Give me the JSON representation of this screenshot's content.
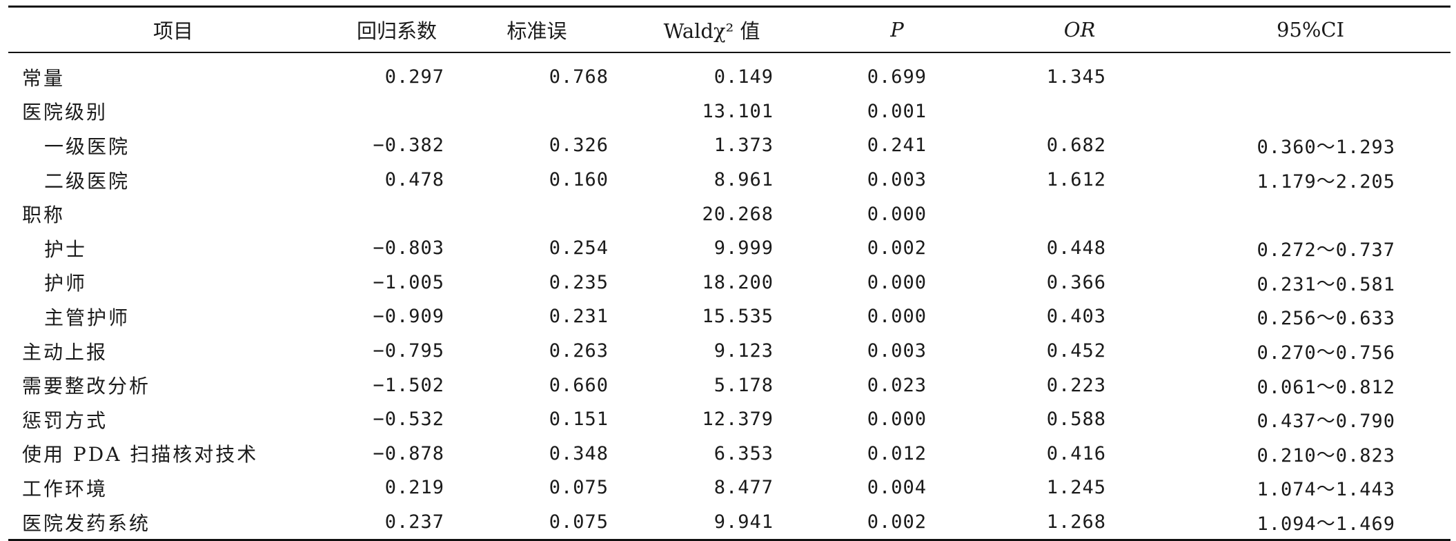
{
  "headers": [
    "项目",
    "回归系数",
    "标准误",
    "Waldχ² 值",
    "P",
    "OR",
    "95%CI"
  ],
  "rows": [
    {
      "item": "常量",
      "sub": false,
      "coef": "0.297",
      "se": "0.768",
      "wald": "0.149",
      "p": "0.699",
      "or": "1.345",
      "ci": ""
    },
    {
      "item": "医院级别",
      "sub": false,
      "coef": "",
      "se": "",
      "wald": "13.101",
      "p": "0.001",
      "or": "",
      "ci": ""
    },
    {
      "item": "一级医院",
      "sub": true,
      "coef": "−0.382",
      "se": "0.326",
      "wald": "1.373",
      "p": "0.241",
      "or": "0.682",
      "ci": "0.360～1.293"
    },
    {
      "item": "二级医院",
      "sub": true,
      "coef": "0.478",
      "se": "0.160",
      "wald": "8.961",
      "p": "0.003",
      "or": "1.612",
      "ci": "1.179～2.205"
    },
    {
      "item": "职称",
      "sub": false,
      "coef": "",
      "se": "",
      "wald": "20.268",
      "p": "0.000",
      "or": "",
      "ci": ""
    },
    {
      "item": "护士",
      "sub": true,
      "coef": "−0.803",
      "se": "0.254",
      "wald": "9.999",
      "p": "0.002",
      "or": "0.448",
      "ci": "0.272～0.737"
    },
    {
      "item": "护师",
      "sub": true,
      "coef": "−1.005",
      "se": "0.235",
      "wald": "18.200",
      "p": "0.000",
      "or": "0.366",
      "ci": "0.231～0.581"
    },
    {
      "item": "主管护师",
      "sub": true,
      "coef": "−0.909",
      "se": "0.231",
      "wald": "15.535",
      "p": "0.000",
      "or": "0.403",
      "ci": "0.256～0.633"
    },
    {
      "item": "主动上报",
      "sub": false,
      "coef": "−0.795",
      "se": "0.263",
      "wald": "9.123",
      "p": "0.003",
      "or": "0.452",
      "ci": "0.270～0.756"
    },
    {
      "item": "需要整改分析",
      "sub": false,
      "coef": "−1.502",
      "se": "0.660",
      "wald": "5.178",
      "p": "0.023",
      "or": "0.223",
      "ci": "0.061～0.812"
    },
    {
      "item": "惩罚方式",
      "sub": false,
      "coef": "−0.532",
      "se": "0.151",
      "wald": "12.379",
      "p": "0.000",
      "or": "0.588",
      "ci": "0.437～0.790"
    },
    {
      "item": "使用 PDA 扫描核对技术",
      "sub": false,
      "coef": "−0.878",
      "se": "0.348",
      "wald": "6.353",
      "p": "0.012",
      "or": "0.416",
      "ci": "0.210～0.823"
    },
    {
      "item": "工作环境",
      "sub": false,
      "coef": "0.219",
      "se": "0.075",
      "wald": "8.477",
      "p": "0.004",
      "or": "1.245",
      "ci": "1.074～1.443"
    },
    {
      "item": "医院发药系统",
      "sub": false,
      "coef": "0.237",
      "se": "0.075",
      "wald": "9.941",
      "p": "0.002",
      "or": "1.268",
      "ci": "1.094～1.469"
    }
  ]
}
